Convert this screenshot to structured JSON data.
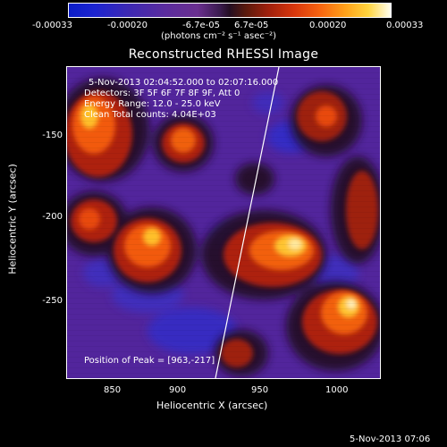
{
  "colorbar": {
    "ticks": [
      "-0.00033",
      "-0.00020",
      "-6.7e-05",
      "6.7e-05",
      "0.00020",
      "0.00033"
    ],
    "units_label": "(photons cm⁻² s⁻¹ asec⁻²)"
  },
  "title": "Reconstructed RHESSI Image",
  "info": {
    "time_range": "5-Nov-2013 02:04:52.000 to 02:07:16.000",
    "detectors": "Detectors: 3F 5F 6F 7F 8F 9F, Att 0",
    "energy_range": "Energy Range: 12.0 - 25.0 keV",
    "clean": "Clean    Total counts: 4.04E+03",
    "peak": "Position of Peak = [963,-217]"
  },
  "x_axis": {
    "label": "Heliocentric X (arcsec)",
    "ticks": [
      "850",
      "900",
      "950",
      "1000"
    ],
    "range": [
      830,
      1025
    ]
  },
  "y_axis": {
    "label": "Heliocentric Y (arcsec)",
    "ticks": [
      "-150",
      "-200",
      "-250"
    ],
    "range": [
      -298,
      -119
    ]
  },
  "footer": {
    "timestamp": "5-Nov-2013 07:06"
  },
  "colors": {
    "background": "#000000",
    "negative_low": "#0b1dc8",
    "neutral": "#51249a",
    "positive_high": "#fffff0"
  }
}
